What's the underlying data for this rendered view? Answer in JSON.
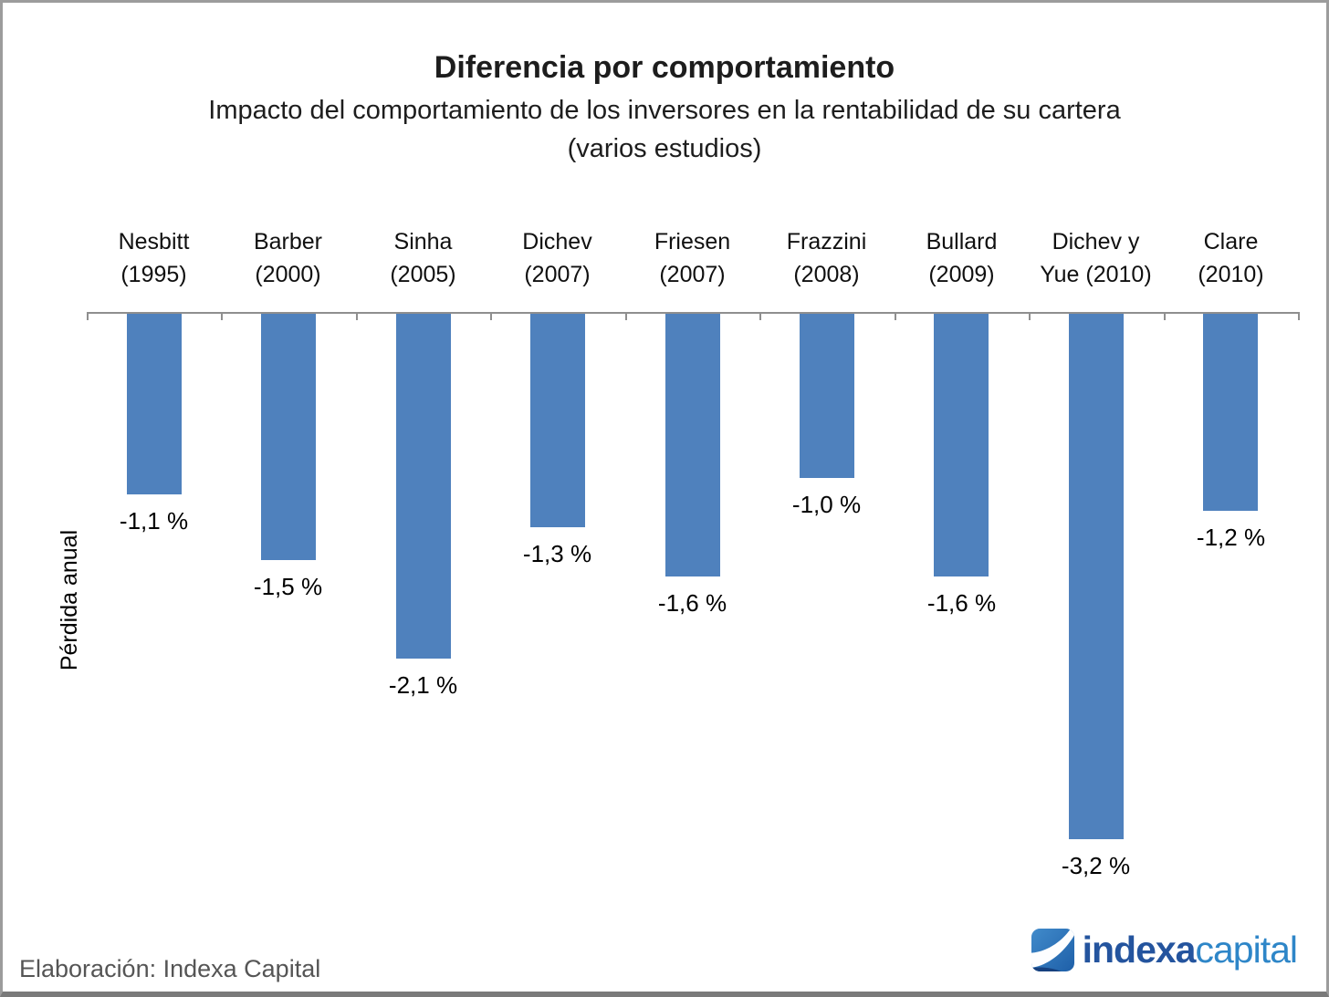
{
  "header": {
    "title": "Diferencia por comportamiento",
    "subtitle": "Impacto del comportamiento de los inversores en la rentabilidad de su cartera",
    "subtitle2": "(varios estudios)"
  },
  "chart_data": {
    "type": "bar",
    "orientation": "vertical-negative",
    "title": "Diferencia por comportamiento",
    "subtitle": "Impacto del comportamiento de los inversores en la rentabilidad de su cartera (varios estudios)",
    "ylabel": "Pérdida anual",
    "categories": [
      "Nesbitt (1995)",
      "Barber (2000)",
      "Sinha (2005)",
      "Dichev (2007)",
      "Friesen (2007)",
      "Frazzini (2008)",
      "Bullard (2009)",
      "Dichev y Yue (2010)",
      "Clare (2010)"
    ],
    "category_lines": [
      [
        "Nesbitt",
        "(1995)"
      ],
      [
        "Barber",
        "(2000)"
      ],
      [
        "Sinha",
        "(2005)"
      ],
      [
        "Dichev",
        "(2007)"
      ],
      [
        "Friesen",
        "(2007)"
      ],
      [
        "Frazzini",
        "(2008)"
      ],
      [
        "Bullard",
        "(2009)"
      ],
      [
        "Dichev y",
        "Yue (2010)"
      ],
      [
        "Clare",
        "(2010)"
      ]
    ],
    "values": [
      -1.1,
      -1.5,
      -2.1,
      -1.3,
      -1.6,
      -1.0,
      -1.6,
      -3.2,
      -1.2
    ],
    "value_labels": [
      "-1,1 %",
      "-1,5 %",
      "-2,1 %",
      "-1,3 %",
      "-1,6 %",
      "-1,0 %",
      "-1,6 %",
      "-3,2 %",
      "-1,2 %"
    ],
    "unit": "%",
    "ylim": [
      -3.5,
      0
    ],
    "grid": false,
    "legend": false,
    "bar_color": "#4F81BD",
    "axis_color": "#8F8F8F"
  },
  "footer": {
    "credit": "Elaboración: Indexa Capital"
  },
  "logo": {
    "brand_bold": "indexa",
    "brand_light": "capital",
    "color_bold": "#24549E",
    "color_light": "#2E86C8",
    "icon": "indexa-swoosh-square"
  }
}
